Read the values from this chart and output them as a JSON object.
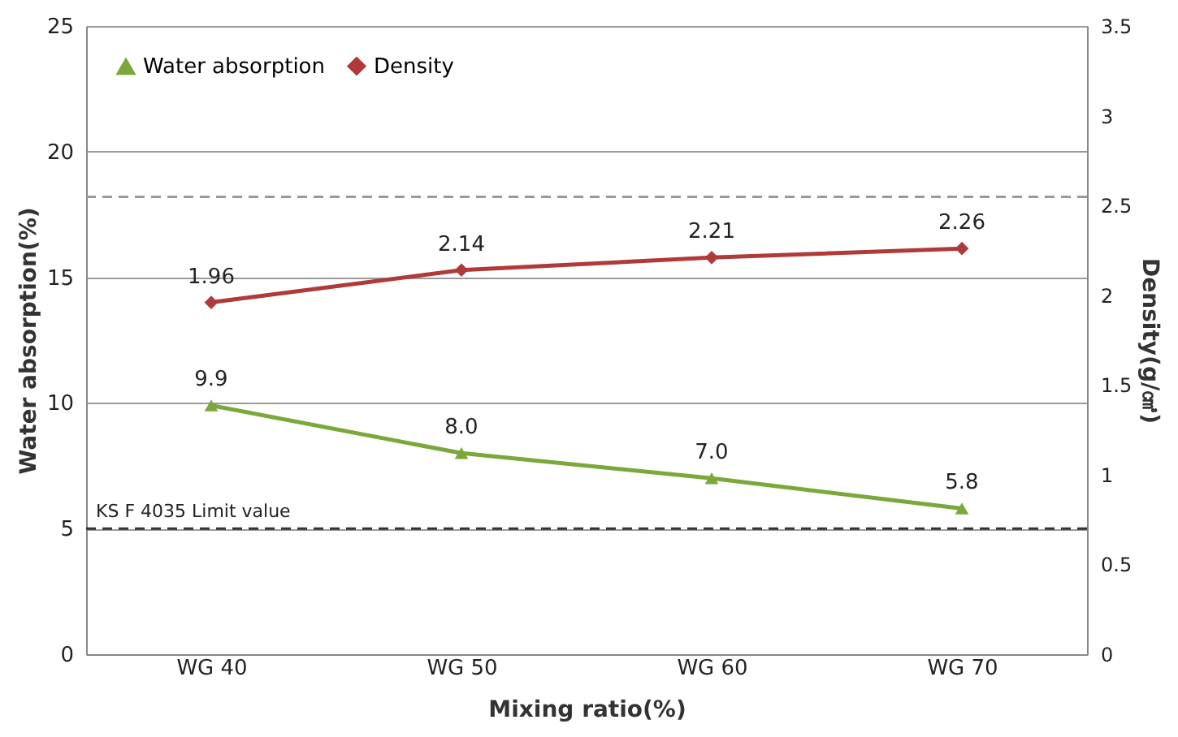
{
  "chart_data": {
    "type": "line",
    "categories": [
      "WG 40",
      "WG 50",
      "WG 60",
      "WG 70"
    ],
    "xlabel": "Mixing ratio(%)",
    "ylabel": "Water absorption(%)",
    "y2label": "Density(g/㎤)",
    "series": [
      {
        "name": "Water absorption",
        "color": "#7aa83a",
        "values": [
          9.9,
          8.0,
          7.0,
          5.8
        ],
        "value_labels": [
          "9.9",
          "8.0",
          "7.0",
          "5.8"
        ],
        "marker": "triangle"
      },
      {
        "name": "Density",
        "color": "#b03a3a",
        "values": [
          1.96,
          2.14,
          2.21,
          2.26
        ],
        "axis": "y2",
        "marker": "diamond"
      }
    ],
    "data_labels": true,
    "ylim": [
      0,
      25
    ],
    "yticks": [
      0,
      5,
      10,
      15,
      20,
      25
    ],
    "y2lim": [
      0,
      3.5
    ],
    "y2ticks": [
      0,
      0.5,
      1,
      1.5,
      2,
      2.5,
      3,
      3.5
    ],
    "ref_lines": [
      {
        "axis": "y",
        "value": 5,
        "label": "KS F 4035 Limit value",
        "color": "#333333",
        "line_style": "dashed"
      },
      {
        "axis": "y",
        "value": 18.2,
        "label": null,
        "color": "#999999",
        "line_style": "dashed"
      }
    ],
    "grid": "y",
    "legend": "top left",
    "line_style": "solid"
  }
}
